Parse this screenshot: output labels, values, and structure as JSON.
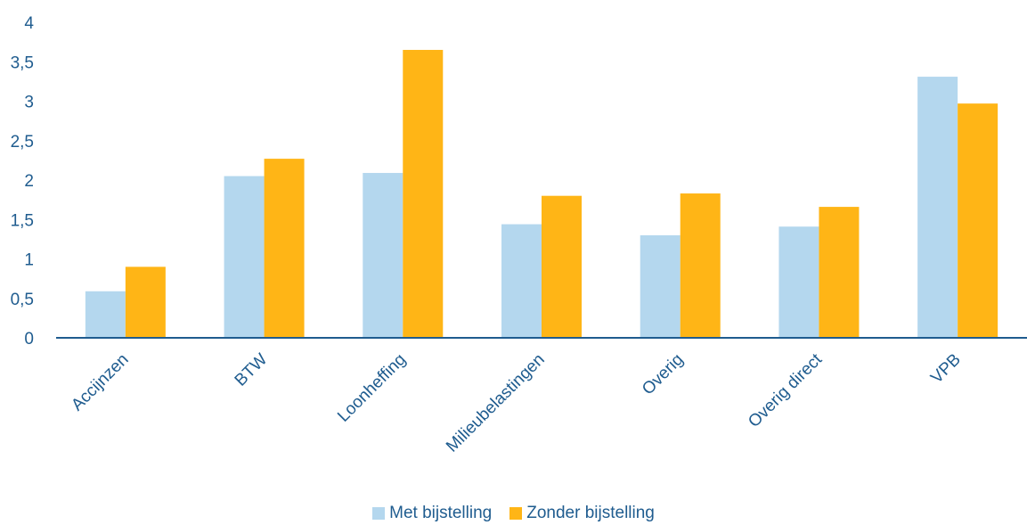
{
  "chart_data": {
    "type": "bar",
    "categories": [
      "Accijnzen",
      "BTW",
      "Loonheffing",
      "Milieubelastingen",
      "Overig",
      "Overig direct",
      "VPB"
    ],
    "series": [
      {
        "name": "Met bijstelling",
        "color": "#b4d7ee",
        "values": [
          0.59,
          2.05,
          2.09,
          1.44,
          1.3,
          1.41,
          3.31
        ]
      },
      {
        "name": "Zonder bijstelling",
        "color": "#ffb516",
        "values": [
          0.9,
          2.27,
          3.65,
          1.8,
          1.83,
          1.66,
          2.97
        ]
      }
    ],
    "yticks": [
      "0",
      "0,5",
      "1",
      "1,5",
      "2",
      "2,5",
      "3",
      "3,5",
      "4"
    ],
    "ylim": [
      0,
      4
    ],
    "axis_color": "#1f5c8f",
    "text_color": "#1f5c8f",
    "grid": false,
    "legend_position": "bottom"
  }
}
